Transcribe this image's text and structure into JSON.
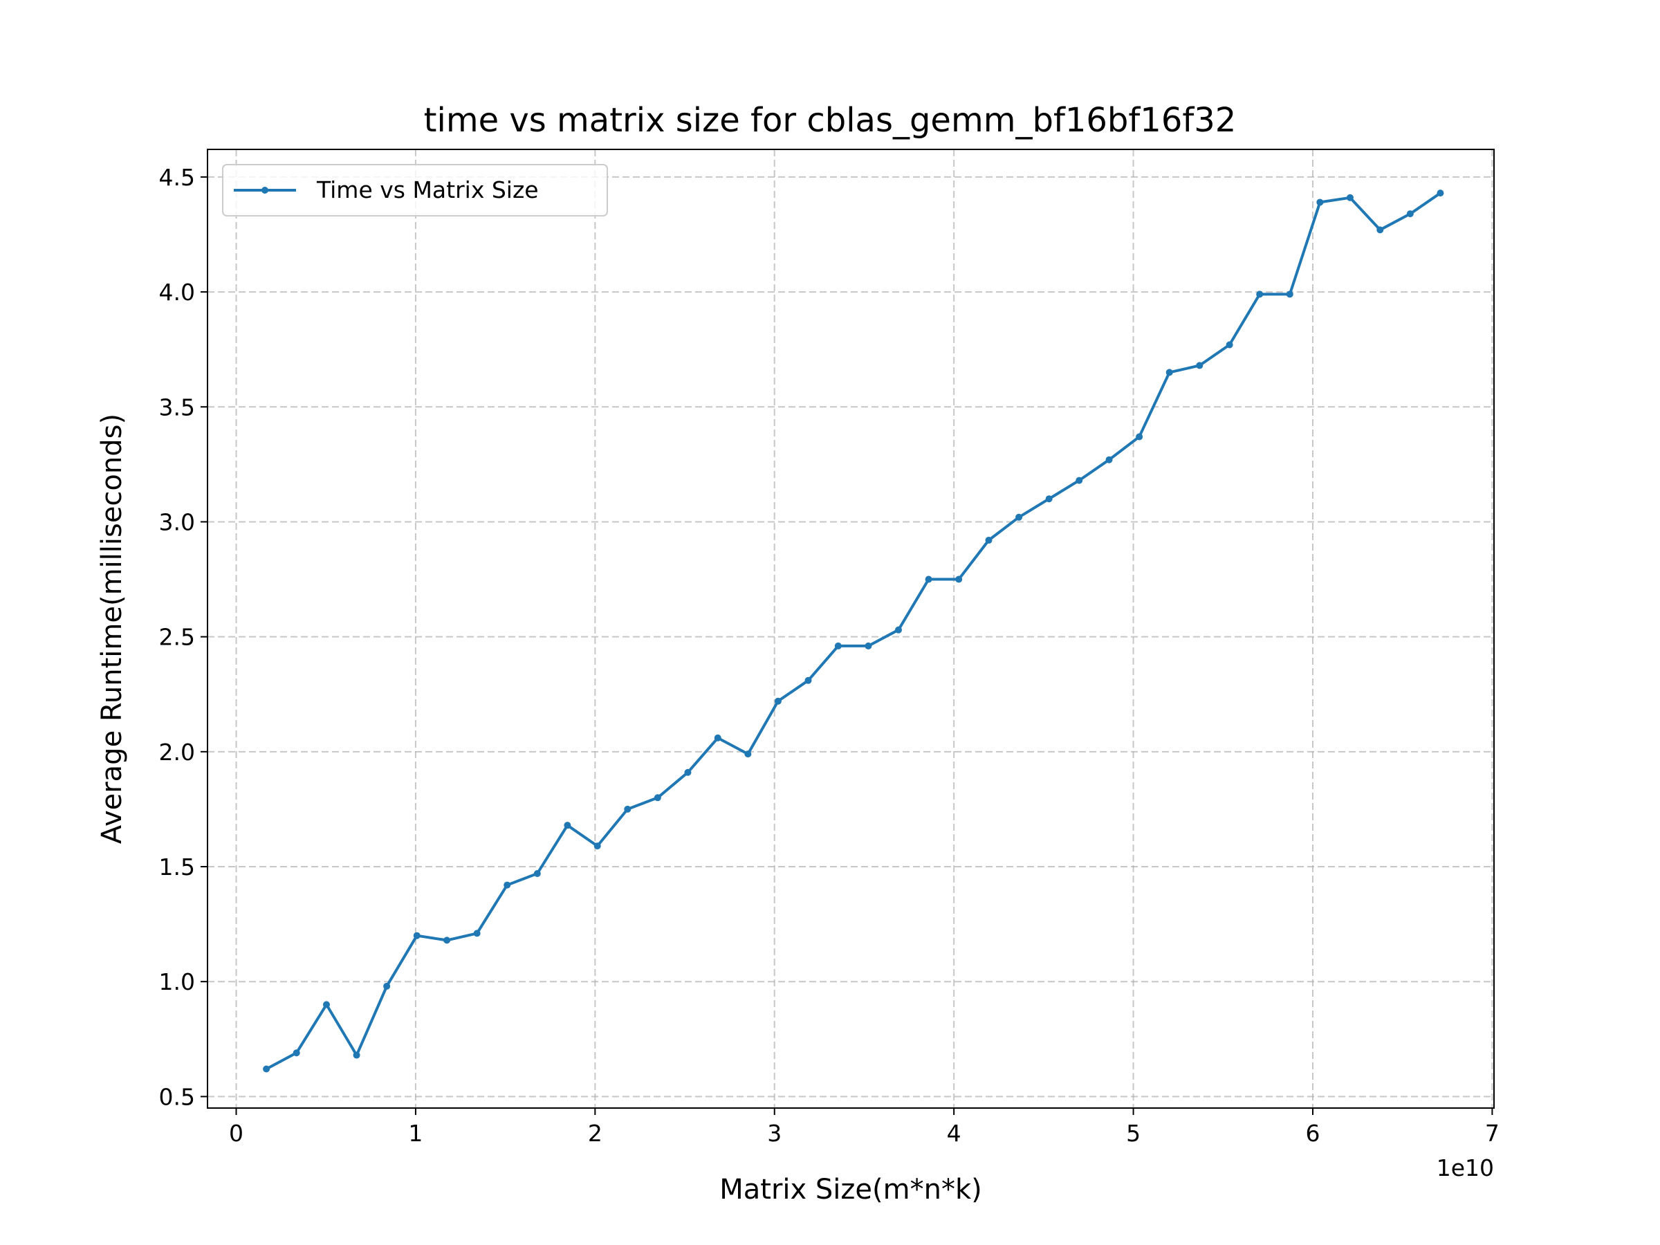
{
  "chart_data": {
    "type": "line",
    "title": "time vs matrix size for cblas_gemm_bf16bf16f32",
    "xlabel": "Matrix Size(m*n*k)",
    "ylabel": "Average Runtime(milliseconds)",
    "x_offset_label": "1e10",
    "xlim": [
      -0.16,
      7.01
    ],
    "ylim": [
      0.45,
      4.62
    ],
    "xticks": [
      0,
      1,
      2,
      3,
      4,
      5,
      6,
      7
    ],
    "xtick_labels": [
      "0",
      "1",
      "2",
      "3",
      "4",
      "5",
      "6",
      "7"
    ],
    "yticks": [
      0.5,
      1.0,
      1.5,
      2.0,
      2.5,
      3.0,
      3.5,
      4.0,
      4.5
    ],
    "ytick_labels": [
      "0.5",
      "1.0",
      "1.5",
      "2.0",
      "2.5",
      "3.0",
      "3.5",
      "4.0",
      "4.5"
    ],
    "grid": true,
    "legend_position": "upper-left",
    "series": [
      {
        "name": "Time vs Matrix Size",
        "color": "#1f77b4",
        "marker": "point",
        "x": [
          0.168,
          0.336,
          0.503,
          0.671,
          0.839,
          1.007,
          1.174,
          1.342,
          1.51,
          1.678,
          1.846,
          2.013,
          2.181,
          2.349,
          2.517,
          2.684,
          2.852,
          3.02,
          3.188,
          3.355,
          3.523,
          3.691,
          3.859,
          4.027,
          4.194,
          4.362,
          4.53,
          4.698,
          4.865,
          5.033,
          5.201,
          5.369,
          5.536,
          5.704,
          5.872,
          6.04,
          6.208,
          6.375,
          6.543,
          6.711
        ],
        "y": [
          0.62,
          0.69,
          0.9,
          0.68,
          0.98,
          1.2,
          1.18,
          1.21,
          1.42,
          1.47,
          1.68,
          1.59,
          1.75,
          1.8,
          1.91,
          2.06,
          1.99,
          2.22,
          2.31,
          2.46,
          2.46,
          2.53,
          2.75,
          2.75,
          2.92,
          3.02,
          3.1,
          3.18,
          3.27,
          3.37,
          3.65,
          3.68,
          3.77,
          3.99,
          3.99,
          4.39,
          4.41,
          4.27,
          4.34,
          4.43
        ]
      }
    ]
  }
}
